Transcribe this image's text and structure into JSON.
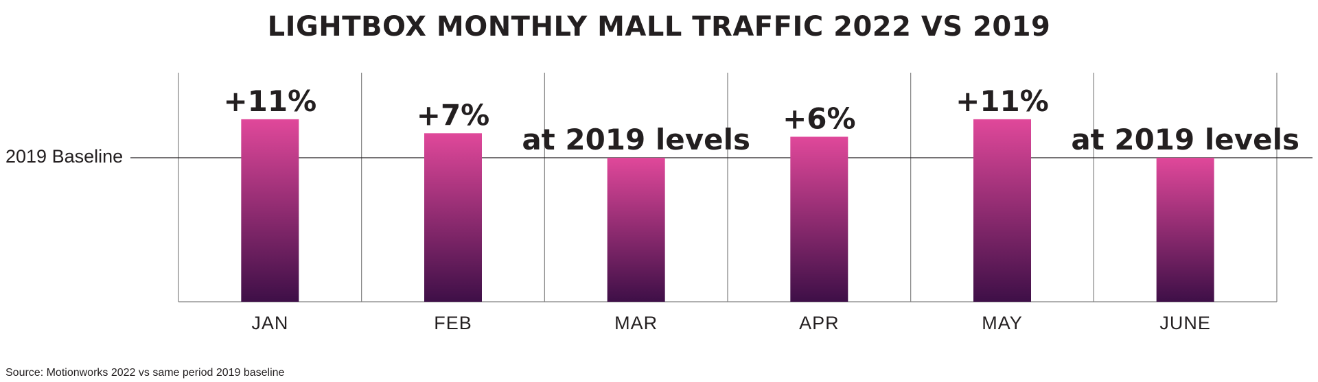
{
  "chart_data": {
    "type": "bar",
    "title": "LIGHTBOX MONTHLY MALL TRAFFIC 2022 VS 2019",
    "baseline_label": "2019 Baseline",
    "categories": [
      "JAN",
      "FEB",
      "MAR",
      "APR",
      "MAY",
      "JUNE"
    ],
    "values": [
      11,
      7,
      0,
      6,
      11,
      0
    ],
    "data_labels": [
      "+11%",
      "+7%",
      "at 2019 levels",
      "+6%",
      "+11%",
      "at 2019 levels"
    ],
    "unit": "% vs 2019",
    "grid": "vertical separators between categories",
    "source": "Source: Motionworks 2022 vs same period 2019 baseline",
    "colors": {
      "bar_top": "#e0489a",
      "bar_bottom": "#3e0f47",
      "text": "#231f20",
      "grid": "#808080"
    }
  }
}
